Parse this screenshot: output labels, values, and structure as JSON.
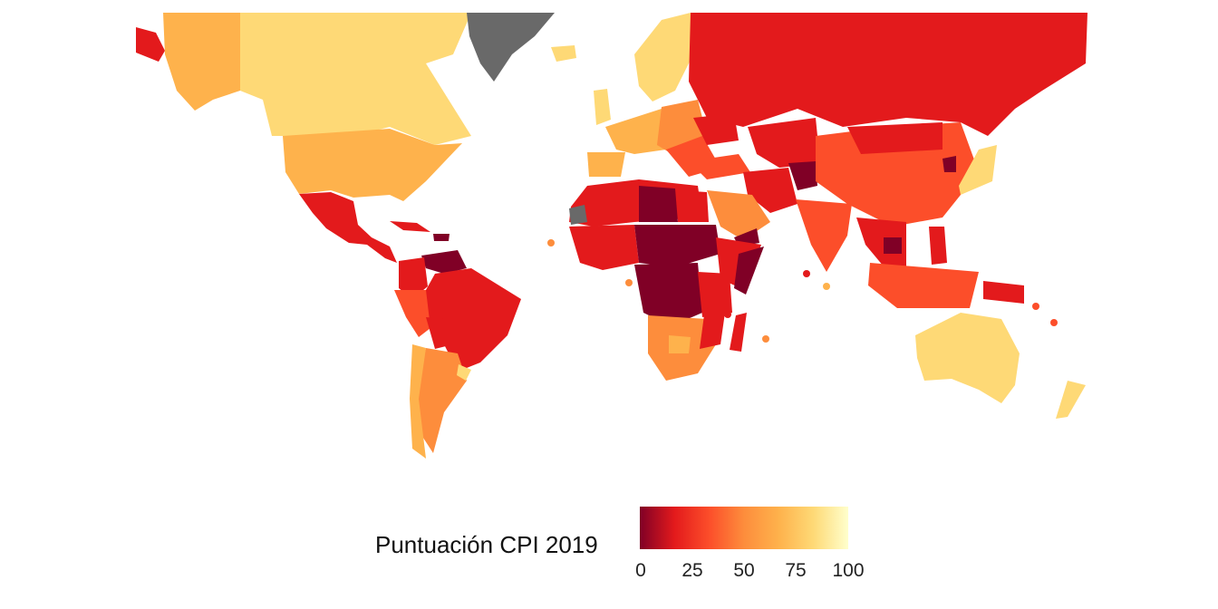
{
  "legend": {
    "title": "Puntuación CPI 2019",
    "ticks": [
      "0",
      "25",
      "50",
      "75",
      "100"
    ],
    "colors": [
      "#800026",
      "#e31a1c",
      "#fc4e2a",
      "#fd8d3c",
      "#feb24c",
      "#fed976",
      "#ffffcc"
    ],
    "no_data_color": "#696969"
  },
  "map": {
    "variable": "CPI 2019",
    "scale_min": 0,
    "scale_max": 100
  }
}
